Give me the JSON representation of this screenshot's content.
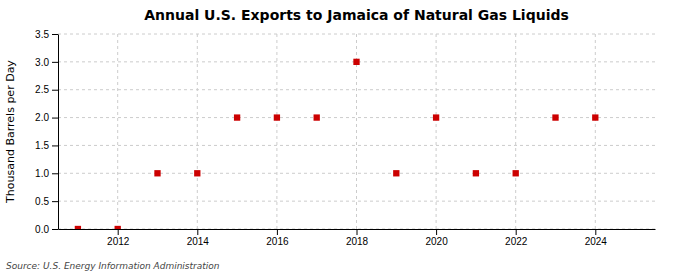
{
  "chart_data": {
    "type": "scatter",
    "title": "Annual U.S. Exports to Jamaica of Natural Gas Liquids",
    "ylabel": "Thousand Barrels per Day",
    "source": "Source: U.S. Energy Information Administration",
    "x": [
      2011,
      2012,
      2013,
      2014,
      2015,
      2016,
      2017,
      2018,
      2019,
      2020,
      2021,
      2022,
      2023,
      2024
    ],
    "values": [
      0.0,
      0.0,
      1.0,
      1.0,
      2.0,
      2.0,
      2.0,
      3.0,
      1.0,
      2.0,
      1.0,
      1.0,
      2.0,
      2.0
    ],
    "color": "#cc0000",
    "marker": "square",
    "xlim": [
      2010.5,
      2025.5
    ],
    "ylim": [
      0.0,
      3.5
    ],
    "xticks": [
      2012,
      2014,
      2016,
      2018,
      2020,
      2022,
      2024
    ],
    "yticks": [
      {
        "value": 0.0,
        "label": "0.0"
      },
      0.5,
      {
        "value": 1.0,
        "label": "1.0"
      },
      1.5,
      {
        "value": 2.0,
        "label": "2.0"
      },
      2.5,
      {
        "value": 3.0,
        "label": "3.0"
      },
      3.5
    ],
    "grid": true
  }
}
